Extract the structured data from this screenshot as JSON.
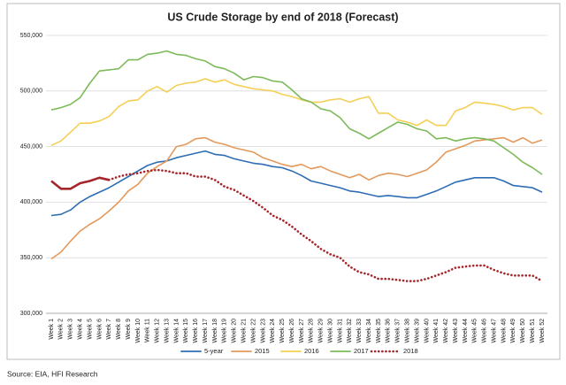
{
  "chart_data": {
    "type": "line",
    "title": "US Crude Storage by end of 2018 (Forecast)",
    "source": "Source: EIA, HFI Research",
    "categories": [
      "Week 1",
      "Week 2",
      "Week 3",
      "Week 4",
      "Week 5",
      "Week 6",
      "Week 7",
      "Week 8",
      "Week 9",
      "Week 10",
      "Week 11",
      "Week 12",
      "Week 13",
      "Week 14",
      "Week 15",
      "Week 16",
      "Week 17",
      "Week 18",
      "Week 19",
      "Week 20",
      "Week 21",
      "Week 22",
      "Week 23",
      "Week 24",
      "Week 25",
      "Week 26",
      "Week 27",
      "Week 28",
      "Week 29",
      "Week 30",
      "Week 31",
      "Week 32",
      "Week 33",
      "Week 34",
      "Week 35",
      "Week 36",
      "Week 37",
      "Week 38",
      "Week 39",
      "Week 40",
      "Week 41",
      "Week 42",
      "Week 43",
      "Week 44",
      "Week 45",
      "Week 46",
      "Week 47",
      "Week 48",
      "Week 49",
      "Week 50",
      "Week 51",
      "Week 52"
    ],
    "ylim": [
      300000,
      550000
    ],
    "yticks": [
      {
        "value": 300000,
        "label": "300,000"
      },
      {
        "value": 350000,
        "label": "350,000"
      },
      {
        "value": 400000,
        "label": "400,000"
      },
      {
        "value": 450000,
        "label": "450,000"
      },
      {
        "value": 500000,
        "label": "500,000"
      },
      {
        "value": 550000,
        "label": "550,000"
      }
    ],
    "grid": true,
    "legend": "bottom",
    "series": [
      {
        "name": "5-year",
        "color": "#2e6db4",
        "values": [
          388000,
          389000,
          393000,
          400000,
          405000,
          409000,
          413000,
          418000,
          423000,
          428000,
          433000,
          436000,
          437000,
          440000,
          442000,
          444000,
          446000,
          443000,
          442000,
          439000,
          437000,
          435000,
          434000,
          432000,
          431000,
          428000,
          424000,
          419000,
          417000,
          415000,
          413000,
          410000,
          409000,
          407000,
          405000,
          406000,
          405000,
          404000,
          404000,
          407000,
          410000,
          414000,
          418000,
          420000,
          422000,
          422000,
          422000,
          419000,
          415000,
          414000,
          413000,
          409000
        ]
      },
      {
        "name": "2015",
        "color": "#e3995c",
        "values": [
          349000,
          355000,
          365000,
          374000,
          380000,
          385000,
          392000,
          400000,
          410000,
          416000,
          426000,
          432000,
          437000,
          450000,
          452000,
          457000,
          458000,
          454000,
          452000,
          449000,
          447000,
          445000,
          440000,
          437000,
          434000,
          432000,
          434000,
          430000,
          432000,
          428000,
          425000,
          422000,
          425000,
          420000,
          424000,
          426000,
          425000,
          423000,
          426000,
          429000,
          436000,
          445000,
          448000,
          451000,
          455000,
          456000,
          457000,
          458000,
          454000,
          458000,
          453000,
          456000
        ]
      },
      {
        "name": "2016",
        "color": "#f5cf55",
        "values": [
          451000,
          455000,
          463000,
          471000,
          471000,
          473000,
          477000,
          486000,
          491000,
          492000,
          500000,
          504000,
          499000,
          505000,
          507000,
          508000,
          511000,
          508000,
          510000,
          506000,
          504000,
          502000,
          501000,
          500000,
          497000,
          495000,
          492000,
          490000,
          490000,
          492000,
          493000,
          490000,
          493000,
          495000,
          480000,
          480000,
          474000,
          472000,
          469000,
          474000,
          469000,
          469000,
          482000,
          485000,
          490000,
          489000,
          488000,
          486000,
          483000,
          485000,
          485000,
          479000
        ]
      },
      {
        "name": "2017",
        "color": "#7dba59",
        "values": [
          483000,
          485000,
          488000,
          494000,
          507000,
          518000,
          519000,
          520000,
          528000,
          528000,
          533000,
          534000,
          536000,
          533000,
          532000,
          529000,
          527000,
          522000,
          520000,
          516000,
          510000,
          513000,
          512000,
          509000,
          508000,
          501000,
          493000,
          490000,
          484000,
          482000,
          476000,
          466000,
          462000,
          457000,
          462000,
          467000,
          472000,
          470000,
          466000,
          464000,
          457000,
          458000,
          455000,
          457000,
          458000,
          457000,
          455000,
          449000,
          443000,
          436000,
          431000,
          425000
        ]
      },
      {
        "name": "2018",
        "color": "#a5262a",
        "style": "dotted",
        "solid_through": "Week 7",
        "values": [
          419000,
          412000,
          412000,
          417000,
          419000,
          422000,
          420000,
          423000,
          425000,
          426000,
          428000,
          429000,
          428000,
          426000,
          426000,
          423000,
          423000,
          420000,
          414000,
          411000,
          406000,
          401000,
          395000,
          388000,
          384000,
          378000,
          371000,
          365000,
          358000,
          353000,
          350000,
          342000,
          337000,
          335000,
          331000,
          331000,
          330000,
          329000,
          329000,
          331000,
          334000,
          337000,
          341000,
          342000,
          343000,
          343000,
          339000,
          336000,
          334000,
          334000,
          334000,
          329000
        ]
      }
    ]
  }
}
